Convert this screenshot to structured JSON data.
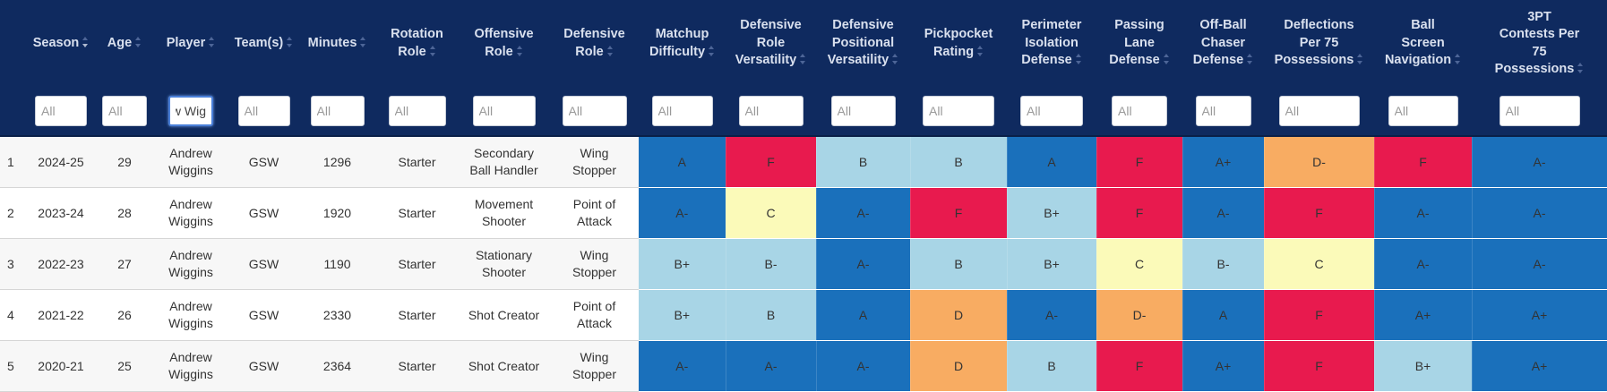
{
  "columns": [
    {
      "label": "",
      "sortable": false
    },
    {
      "label": "Season",
      "sortable": true,
      "active": true
    },
    {
      "label": "Age",
      "sortable": true
    },
    {
      "label": "Player",
      "sortable": true
    },
    {
      "label": "Team(s)",
      "sortable": true
    },
    {
      "label": "Minutes",
      "sortable": true
    },
    {
      "label": "Rotation\nRole",
      "sortable": true
    },
    {
      "label": "Offensive\nRole",
      "sortable": true
    },
    {
      "label": "Defensive\nRole",
      "sortable": true
    },
    {
      "label": "Matchup\nDifficulty",
      "sortable": true
    },
    {
      "label": "Defensive\nRole\nVersatility",
      "sortable": true
    },
    {
      "label": "Defensive\nPositional\nVersatility",
      "sortable": true
    },
    {
      "label": "Pickpocket\nRating",
      "sortable": true
    },
    {
      "label": "Perimeter\nIsolation\nDefense",
      "sortable": true
    },
    {
      "label": "Passing\nLane\nDefense",
      "sortable": true
    },
    {
      "label": "Off-Ball\nChaser\nDefense",
      "sortable": true
    },
    {
      "label": "Deflections\nPer 75\nPossessions",
      "sortable": true
    },
    {
      "label": "Ball\nScreen\nNavigation",
      "sortable": true
    },
    {
      "label": "3PT\nContests Per\n75\nPossessions",
      "sortable": true
    }
  ],
  "filters": [
    null,
    {
      "placeholder": "All",
      "value": ""
    },
    {
      "placeholder": "All",
      "value": ""
    },
    {
      "placeholder": "All",
      "value": "drew Wig",
      "focused": true
    },
    {
      "placeholder": "All",
      "value": ""
    },
    {
      "placeholder": "All",
      "value": ""
    },
    {
      "placeholder": "All",
      "value": ""
    },
    {
      "placeholder": "All",
      "value": ""
    },
    {
      "placeholder": "All",
      "value": ""
    },
    {
      "placeholder": "All",
      "value": ""
    },
    {
      "placeholder": "All",
      "value": ""
    },
    {
      "placeholder": "All",
      "value": ""
    },
    {
      "placeholder": "All",
      "value": ""
    },
    {
      "placeholder": "All",
      "value": ""
    },
    {
      "placeholder": "All",
      "value": ""
    },
    {
      "placeholder": "All",
      "value": ""
    },
    {
      "placeholder": "All",
      "value": ""
    },
    {
      "placeholder": "All",
      "value": ""
    },
    {
      "placeholder": "All",
      "value": ""
    }
  ],
  "rows": [
    {
      "rank": "1",
      "season": "2024-25",
      "age": "29",
      "player": "Andrew\nWiggins",
      "team": "GSW",
      "minutes": "1296",
      "rotation_role": "Starter",
      "offensive_role": "Secondary\nBall Handler",
      "defensive_role": "Wing\nStopper",
      "grades": [
        "A",
        "F",
        "B",
        "B",
        "A",
        "F",
        "A+",
        "D-",
        "F",
        "A-"
      ]
    },
    {
      "rank": "2",
      "season": "2023-24",
      "age": "28",
      "player": "Andrew\nWiggins",
      "team": "GSW",
      "minutes": "1920",
      "rotation_role": "Starter",
      "offensive_role": "Movement\nShooter",
      "defensive_role": "Point of\nAttack",
      "grades": [
        "A-",
        "C",
        "A-",
        "F",
        "B+",
        "F",
        "A-",
        "F",
        "A-",
        "A-"
      ]
    },
    {
      "rank": "3",
      "season": "2022-23",
      "age": "27",
      "player": "Andrew\nWiggins",
      "team": "GSW",
      "minutes": "1190",
      "rotation_role": "Starter",
      "offensive_role": "Stationary\nShooter",
      "defensive_role": "Wing\nStopper",
      "grades": [
        "B+",
        "B-",
        "A-",
        "B",
        "B+",
        "C",
        "B-",
        "C",
        "A-",
        "A-"
      ]
    },
    {
      "rank": "4",
      "season": "2021-22",
      "age": "26",
      "player": "Andrew\nWiggins",
      "team": "GSW",
      "minutes": "2330",
      "rotation_role": "Starter",
      "offensive_role": "Shot Creator",
      "defensive_role": "Point of\nAttack",
      "grades": [
        "B+",
        "B",
        "A",
        "D",
        "A-",
        "D-",
        "A",
        "F",
        "A+",
        "A+"
      ]
    },
    {
      "rank": "5",
      "season": "2020-21",
      "age": "25",
      "player": "Andrew\nWiggins",
      "team": "GSW",
      "minutes": "2364",
      "rotation_role": "Starter",
      "offensive_role": "Shot Creator",
      "defensive_role": "Wing\nStopper",
      "grades": [
        "A-",
        "A-",
        "A-",
        "D",
        "B",
        "F",
        "A+",
        "F",
        "B+",
        "A+"
      ]
    }
  ],
  "grade_colors": {
    "A+": "#1a70bb",
    "A": "#1a70bb",
    "A-": "#1a70bb",
    "B+": "#a8d5e6",
    "B": "#a8d5e6",
    "B-": "#a8d5e6",
    "C+": "#fbfab9",
    "C": "#fbfab9",
    "C-": "#fbfab9",
    "D+": "#f8ac62",
    "D": "#f8ac62",
    "D-": "#f8ac62",
    "F": "#e81a4e"
  },
  "theme": {
    "header_bg": "#0f2a5f",
    "header_text": "#d9e0ee"
  }
}
